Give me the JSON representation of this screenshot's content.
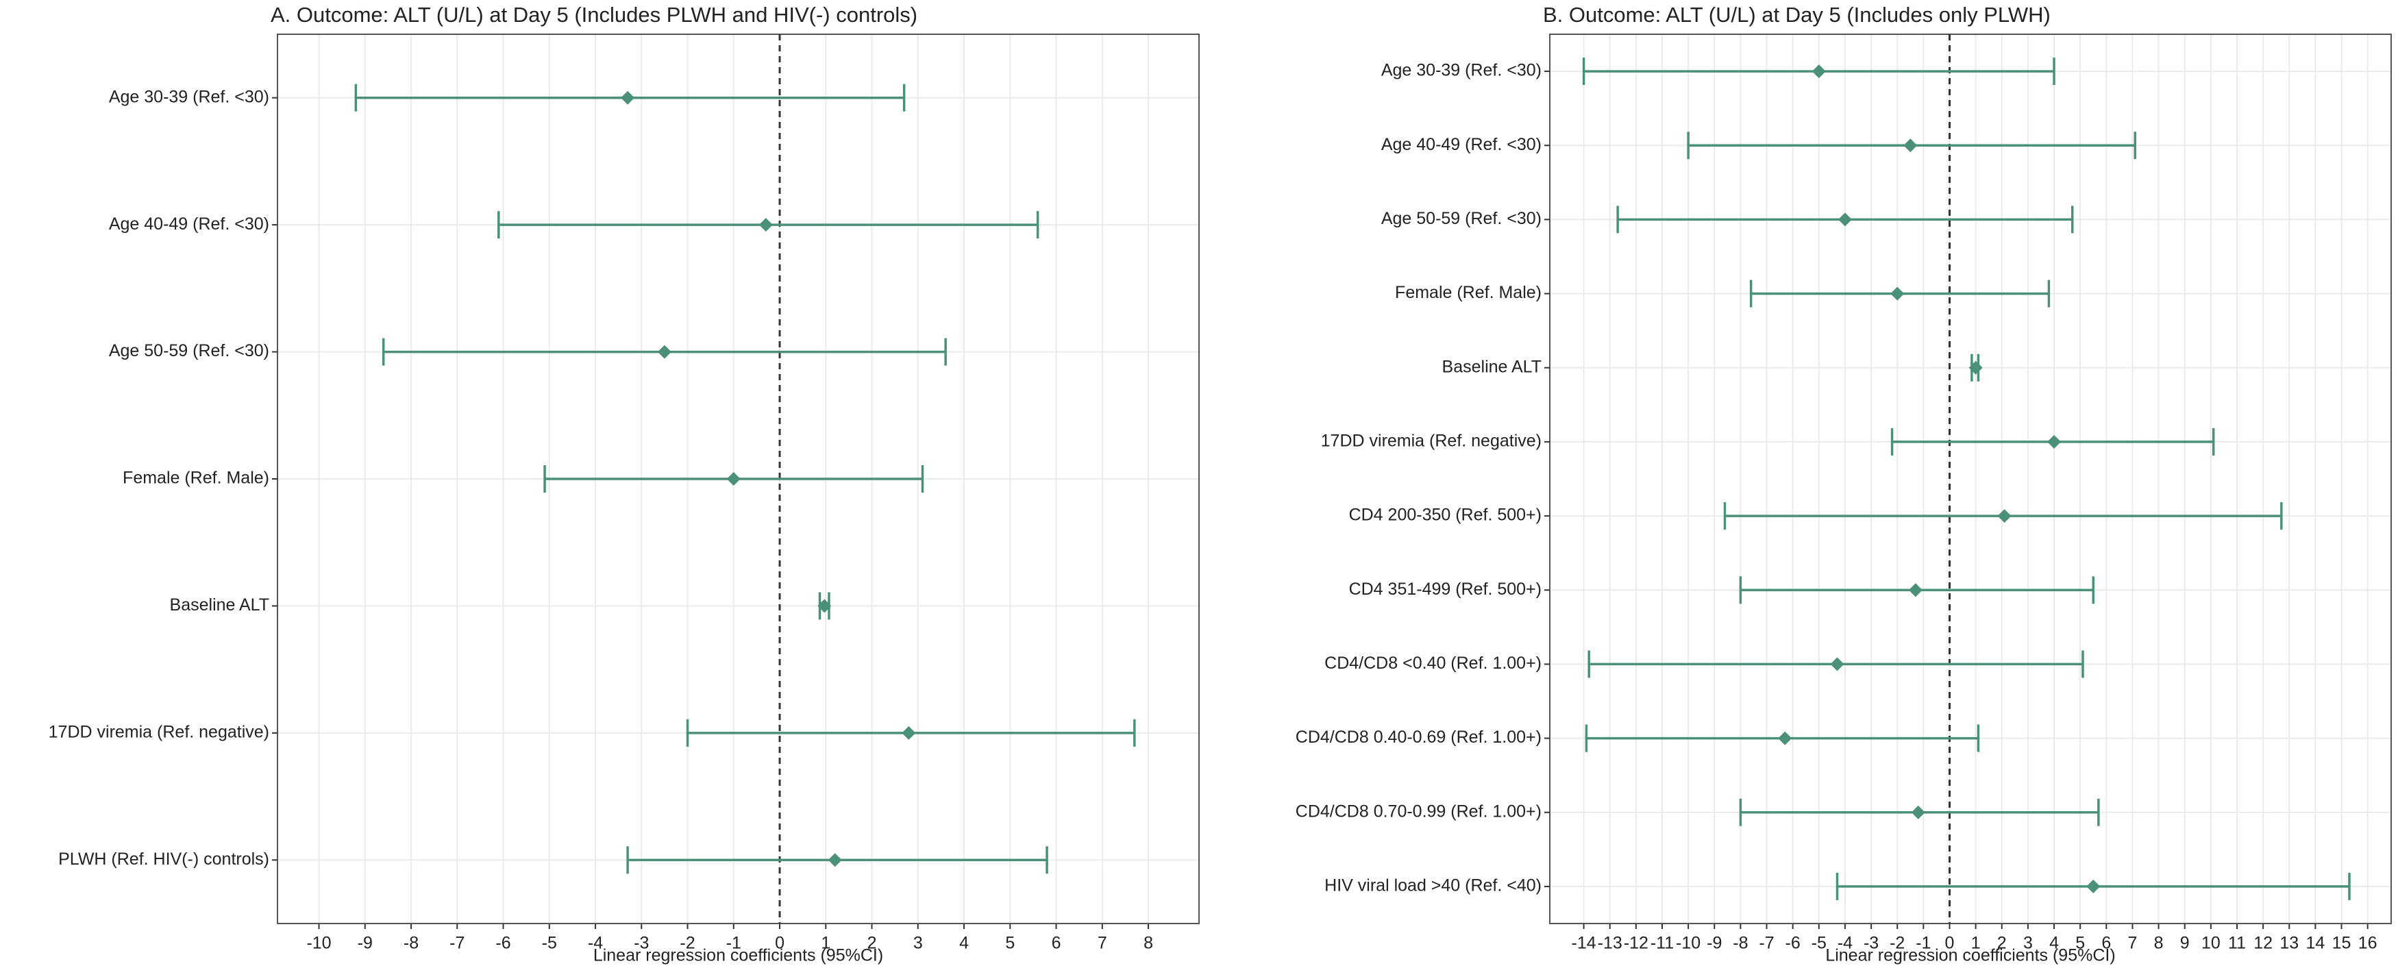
{
  "chart_data": [
    {
      "type": "forest",
      "title": "A.  Outcome: ALT (U/L) at Day 5 (Includes PLWH and HIV(-) controls)",
      "xlabel": "Linear regression coefficients (95%CI)",
      "categories": [
        "Age 30-39 (Ref. <30)",
        "Age 40-49 (Ref. <30)",
        "Age 50-59 (Ref. <30)",
        "Female (Ref. Male)",
        "Baseline ALT",
        "17DD viremia (Ref. negative)",
        "PLWH (Ref. HIV(-) controls)"
      ],
      "values": [
        -3.3,
        -0.3,
        -2.5,
        -1.0,
        0.97,
        2.8,
        1.2
      ],
      "lower": [
        -9.2,
        -6.1,
        -8.6,
        -5.1,
        0.87,
        -2.0,
        -3.3
      ],
      "upper": [
        2.7,
        5.6,
        3.6,
        3.1,
        1.07,
        7.7,
        5.8
      ],
      "color": "#4b9178",
      "refline": 0,
      "xlim": [
        -10.9,
        9.1
      ],
      "xticks": [
        -10,
        -9,
        -8,
        -7,
        -6,
        -5,
        -4,
        -3,
        -2,
        -1,
        0,
        1,
        2,
        3,
        4,
        5,
        6,
        7,
        8
      ],
      "grid": true
    },
    {
      "type": "forest",
      "title": "B.  Outcome: ALT (U/L) at Day 5 (Includes only PLWH)",
      "xlabel": "Linear regression coefficients (95%CI)",
      "categories": [
        "Age 30-39 (Ref. <30)",
        "Age 40-49 (Ref. <30)",
        "Age 50-59 (Ref. <30)",
        "Female (Ref. Male)",
        "Baseline ALT",
        "17DD viremia (Ref. negative)",
        "CD4 200-350 (Ref. 500+)",
        "CD4 351-499 (Ref. 500+)",
        "CD4/CD8 <0.40 (Ref. 1.00+)",
        "CD4/CD8 0.40-0.69 (Ref. 1.00+)",
        "CD4/CD8 0.70-0.99 (Ref. 1.00+)",
        "HIV viral load >40 (Ref. <40)"
      ],
      "values": [
        -5.0,
        -1.5,
        -4.0,
        -2.0,
        1.0,
        4.0,
        2.1,
        -1.3,
        -4.3,
        -6.3,
        -1.2,
        5.5
      ],
      "lower": [
        -14.0,
        -10.0,
        -12.7,
        -7.6,
        0.85,
        -2.2,
        -8.6,
        -8.0,
        -13.8,
        -13.9,
        -8.0,
        -4.3
      ],
      "upper": [
        4.0,
        7.1,
        4.7,
        3.8,
        1.1,
        10.1,
        12.7,
        5.5,
        5.1,
        1.1,
        5.7,
        15.3
      ],
      "color": "#4b9178",
      "refline": 0,
      "xlim": [
        -15.3,
        16.9
      ],
      "xticks": [
        -14,
        -13,
        -12,
        -11,
        -10,
        -9,
        -8,
        -7,
        -6,
        -5,
        -4,
        -3,
        -2,
        -1,
        0,
        1,
        2,
        3,
        4,
        5,
        6,
        7,
        8,
        9,
        10,
        11,
        12,
        13,
        14,
        15,
        16
      ],
      "grid": true
    }
  ]
}
